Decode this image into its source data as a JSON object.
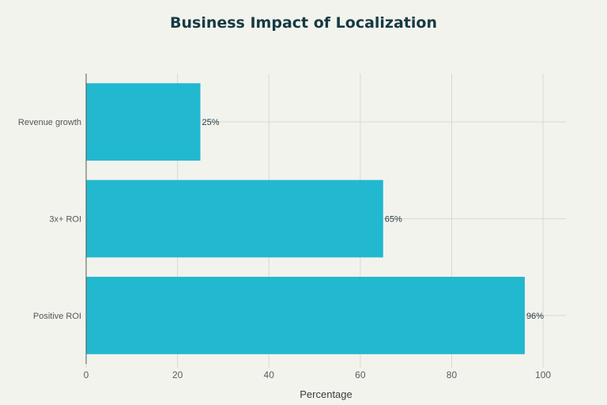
{
  "chart_data": {
    "type": "bar",
    "orientation": "horizontal",
    "title": "Business Impact of Localization",
    "xlabel": "Percentage",
    "ylabel": "",
    "categories": [
      "Revenue growth",
      "3x+ ROI",
      "Positive ROI"
    ],
    "values": [
      25,
      65,
      96
    ],
    "data_labels": [
      "25%",
      "65%",
      "96%"
    ],
    "xlim": [
      0,
      105
    ],
    "xticks": [
      0,
      20,
      40,
      60,
      80,
      100
    ],
    "grid": true,
    "legend": "none",
    "colors": {
      "bar": "#22b8cf",
      "grid": "#d9d9d4",
      "axis": "#555555",
      "background": "#f3f3ee"
    }
  }
}
